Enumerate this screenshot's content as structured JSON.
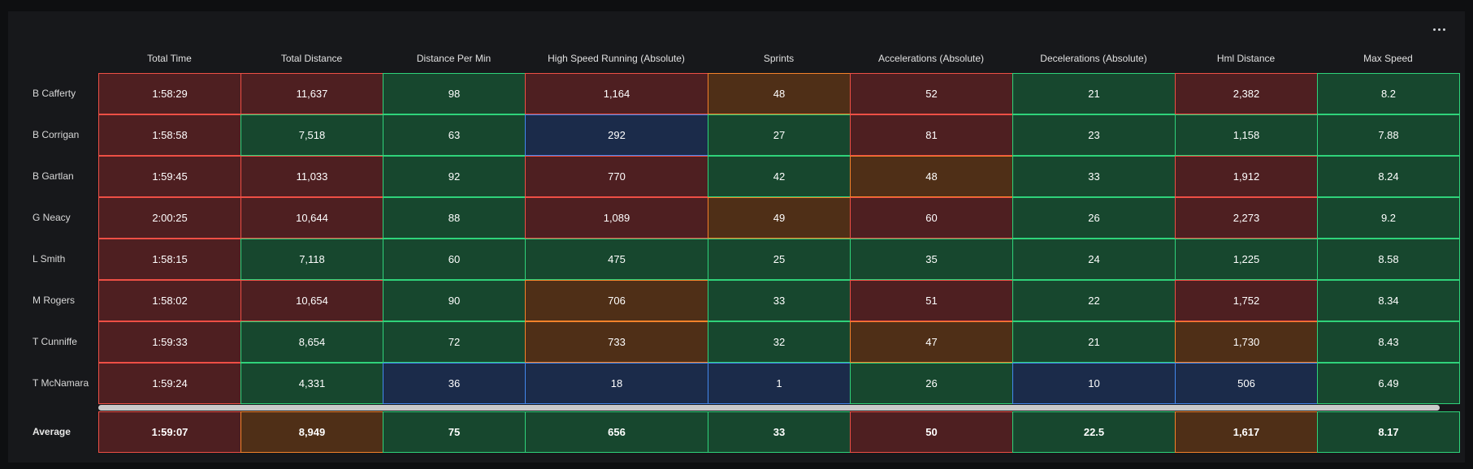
{
  "icons": {
    "menu": "more-horizontal-icon"
  },
  "columns": [
    "Total Time",
    "Total Distance",
    "Distance Per Min",
    "High Speed Running (Absolute)",
    "Sprints",
    "Accelerations (Absolute)",
    "Decelerations (Absolute)",
    "Hml Distance",
    "Max Speed"
  ],
  "status_colors": {
    "red": {
      "bg": "#4e1f21",
      "border": "#ee4f45"
    },
    "green": {
      "bg": "#17472e",
      "border": "#2fd37a"
    },
    "orange": {
      "bg": "#4f2f17",
      "border": "#f5822a"
    },
    "blue": {
      "bg": "#1b2b4a",
      "border": "#4388ee"
    }
  },
  "rows": [
    {
      "name": "B Cafferty",
      "values": [
        "1:58:29",
        "11,637",
        "98",
        "1,164",
        "48",
        "52",
        "21",
        "2,382",
        "8.2"
      ],
      "status": [
        "red",
        "red",
        "green",
        "red",
        "orange",
        "red",
        "green",
        "red",
        "green"
      ]
    },
    {
      "name": "B Corrigan",
      "values": [
        "1:58:58",
        "7,518",
        "63",
        "292",
        "27",
        "81",
        "23",
        "1,158",
        "7.88"
      ],
      "status": [
        "red",
        "green",
        "green",
        "blue",
        "green",
        "red",
        "green",
        "green",
        "green"
      ]
    },
    {
      "name": "B Gartlan",
      "values": [
        "1:59:45",
        "11,033",
        "92",
        "770",
        "42",
        "48",
        "33",
        "1,912",
        "8.24"
      ],
      "status": [
        "red",
        "red",
        "green",
        "red",
        "green",
        "orange",
        "green",
        "red",
        "green"
      ]
    },
    {
      "name": "G Neacy",
      "values": [
        "2:00:25",
        "10,644",
        "88",
        "1,089",
        "49",
        "60",
        "26",
        "2,273",
        "9.2"
      ],
      "status": [
        "red",
        "red",
        "green",
        "red",
        "orange",
        "red",
        "green",
        "red",
        "green"
      ]
    },
    {
      "name": "L Smith",
      "values": [
        "1:58:15",
        "7,118",
        "60",
        "475",
        "25",
        "35",
        "24",
        "1,225",
        "8.58"
      ],
      "status": [
        "red",
        "green",
        "green",
        "green",
        "green",
        "green",
        "green",
        "green",
        "green"
      ]
    },
    {
      "name": "M Rogers",
      "values": [
        "1:58:02",
        "10,654",
        "90",
        "706",
        "33",
        "51",
        "22",
        "1,752",
        "8.34"
      ],
      "status": [
        "red",
        "red",
        "green",
        "orange",
        "green",
        "red",
        "green",
        "red",
        "green"
      ]
    },
    {
      "name": "T Cunniffe",
      "values": [
        "1:59:33",
        "8,654",
        "72",
        "733",
        "32",
        "47",
        "21",
        "1,730",
        "8.43"
      ],
      "status": [
        "red",
        "green",
        "green",
        "orange",
        "green",
        "orange",
        "green",
        "orange",
        "green"
      ]
    },
    {
      "name": "T McNamara",
      "values": [
        "1:59:24",
        "4,331",
        "36",
        "18",
        "1",
        "26",
        "10",
        "506",
        "6.49"
      ],
      "status": [
        "red",
        "green",
        "blue",
        "blue",
        "blue",
        "green",
        "blue",
        "blue",
        "green"
      ]
    }
  ],
  "average": {
    "label": "Average",
    "values": [
      "1:59:07",
      "8,949",
      "75",
      "656",
      "33",
      "50",
      "22.5",
      "1,617",
      "8.17"
    ],
    "status": [
      "red",
      "orange",
      "green",
      "green",
      "green",
      "red",
      "green",
      "orange",
      "green"
    ]
  }
}
